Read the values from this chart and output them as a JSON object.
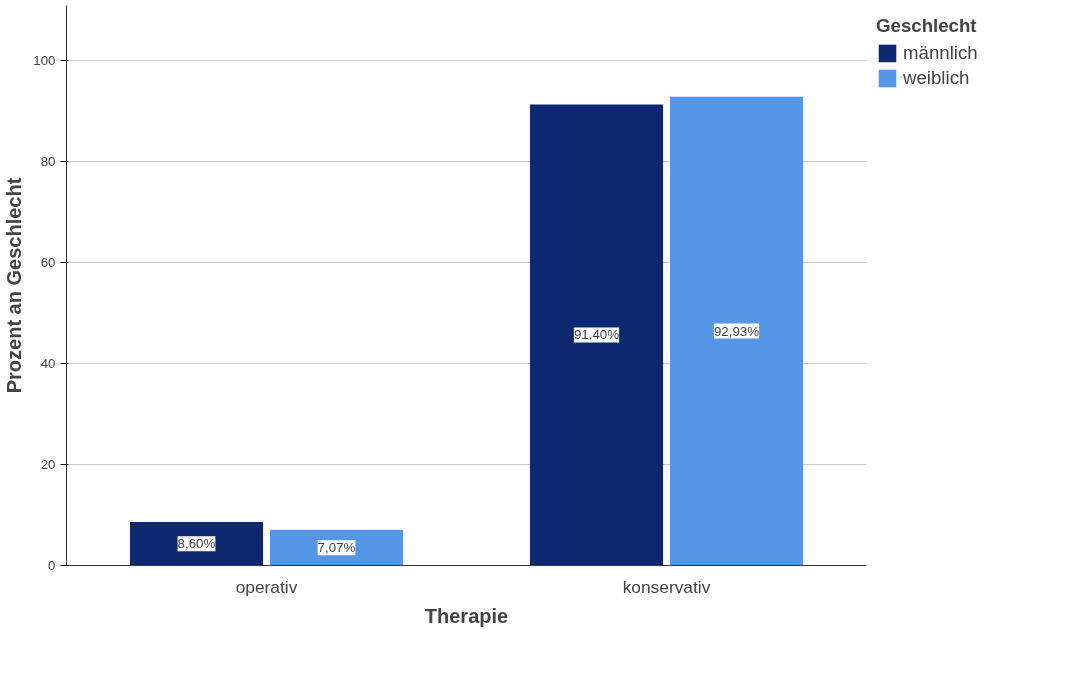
{
  "chart_data": {
    "type": "bar",
    "xlabel": "Therapie",
    "ylabel": "Prozent an Geschlecht",
    "legend_title": "Geschlecht",
    "categories": [
      "operativ",
      "konservativ"
    ],
    "series": [
      {
        "name": "männlich",
        "color": "#0b2870",
        "values": [
          8.6,
          91.4
        ],
        "value_labels": [
          "8,60%",
          "91,40%"
        ]
      },
      {
        "name": "weiblich",
        "color": "#5596e6",
        "values": [
          7.07,
          92.93
        ],
        "value_labels": [
          "7,07%",
          "92,93%"
        ]
      }
    ],
    "ylim": [
      0,
      111
    ],
    "yticks": [
      0,
      20,
      40,
      60,
      80,
      100
    ],
    "grid": "y",
    "legend": "top right"
  }
}
